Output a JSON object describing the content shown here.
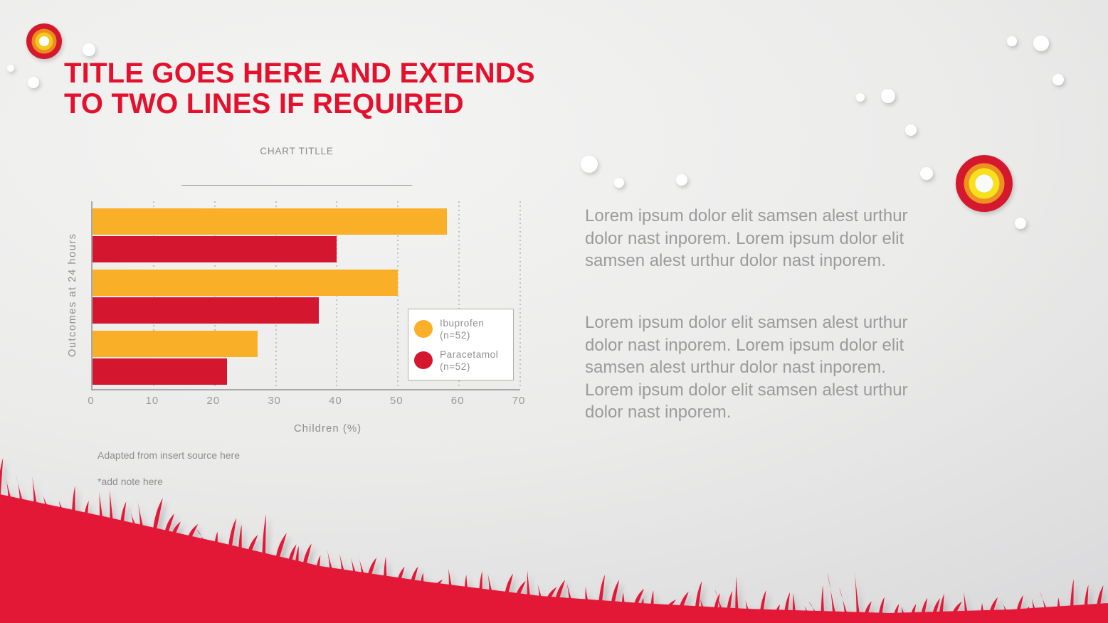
{
  "slide": {
    "title": "TITLE GOES HERE AND EXTENDS\nTO TWO LINES IF REQUIRED",
    "body_paragraph_1": "Lorem ipsum dolor elit samsen alest urthur\ndolor nast inporem. Lorem ipsum dolor elit\nsamsen alest urthur dolor nast inporem.",
    "body_paragraph_2": "Lorem ipsum dolor elit samsen alest urthur\ndolor nast inporem. Lorem ipsum dolor elit\nsamsen alest urthur dolor nast inporem.\nLorem ipsum dolor elit samsen alest urthur\ndolor nast inporem.",
    "colors": {
      "title_red": "#E3112D",
      "grass_red": "#E31837",
      "body_text_gray": "#9B9B9B",
      "background_gray": "#E9E9E9"
    }
  },
  "chart_data": {
    "type": "bar",
    "orientation": "horizontal",
    "title": "CHART TITLLE",
    "xlabel": "Children (%)",
    "ylabel": "Outcomes at 24 hours",
    "xlim": [
      0,
      70
    ],
    "x_ticks": [
      0,
      10,
      20,
      30,
      40,
      50,
      60,
      70
    ],
    "grid": "dotted vertical gridlines",
    "legend_position": "inside right",
    "categories": [
      "",
      "",
      ""
    ],
    "series": [
      {
        "name": "Ibuprofen",
        "n_label": "(n=52)",
        "color": "#F9B028",
        "values": [
          58,
          50,
          27
        ]
      },
      {
        "name": "Paracetamol",
        "n_label": "(n=52)",
        "color": "#D5162F",
        "values": [
          40,
          37,
          22
        ]
      }
    ],
    "source_note": "Adapted from insert source here",
    "footnote": "*add note here"
  }
}
